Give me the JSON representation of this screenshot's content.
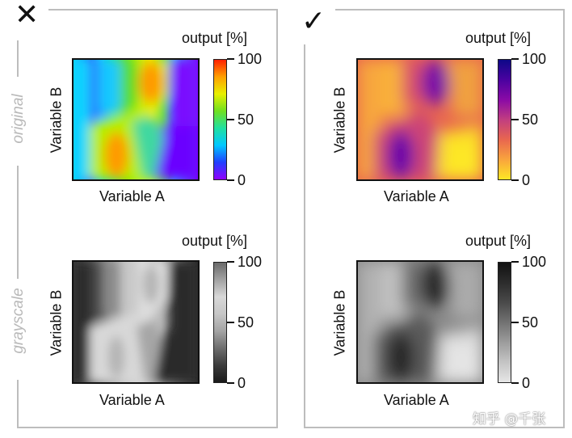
{
  "markers": {
    "left": "✕",
    "right": "✓"
  },
  "side_labels": {
    "top": "original",
    "bottom": "grayscale"
  },
  "panels": [
    {
      "id": "original-rainbow",
      "xlabel": "Variable A",
      "ylabel": "Variable B",
      "colorbar_title": "output [%]",
      "ticks": [
        "100",
        "50",
        "0"
      ],
      "colormap": "rainbow"
    },
    {
      "id": "original-plasma",
      "xlabel": "Variable A",
      "ylabel": "Variable B",
      "colorbar_title": "output [%]",
      "ticks": [
        "100",
        "50",
        "0"
      ],
      "colormap": "plasma"
    },
    {
      "id": "grayscale-rainbow",
      "xlabel": "Variable A",
      "ylabel": "Variable B",
      "colorbar_title": "output [%]",
      "ticks": [
        "100",
        "50",
        "0"
      ],
      "colormap": "rainbow-gray"
    },
    {
      "id": "grayscale-plasma",
      "xlabel": "Variable A",
      "ylabel": "Variable B",
      "colorbar_title": "output [%]",
      "ticks": [
        "100",
        "50",
        "0"
      ],
      "colormap": "plasma-gray"
    }
  ],
  "watermark": "知乎 @千张",
  "colors": {
    "frame": "#bdbdbd",
    "rainbow": [
      "#8b00ff",
      "#3a2bff",
      "#00b3ff",
      "#22e6a0",
      "#5fe11b",
      "#d8f000",
      "#ffb000",
      "#ff2a00"
    ],
    "plasma": [
      "#fde725",
      "#f9b13a",
      "#e8694f",
      "#c93f7a",
      "#8f0da4",
      "#4b02a0",
      "#0d0887"
    ],
    "rainbow_gray": [
      "#232323",
      "#4b4b4b",
      "#7a7a7a",
      "#a6a6a6",
      "#bcbcbc",
      "#d0d0d0",
      "#dcdcdc",
      "#e6e6e6"
    ],
    "plasma_gray": [
      "#e7e7e7",
      "#c9c9c9",
      "#a4a4a4",
      "#7e7e7e",
      "#555555",
      "#343434",
      "#161616"
    ]
  }
}
